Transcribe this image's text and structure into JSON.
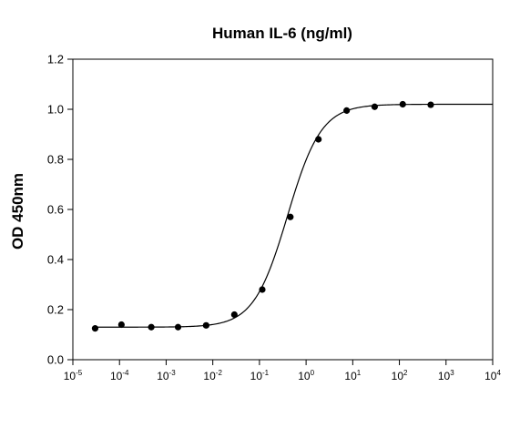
{
  "chart_data": {
    "type": "scatter",
    "title": "Human IL-6 (ng/ml)",
    "xlabel": "",
    "ylabel": "OD 450nm",
    "x_scale": "log",
    "xlim": [
      1e-05,
      10000
    ],
    "ylim": [
      0.0,
      1.2
    ],
    "x_ticks": [
      {
        "base": "10",
        "exp": "-5"
      },
      {
        "base": "10",
        "exp": "-4"
      },
      {
        "base": "10",
        "exp": "-3"
      },
      {
        "base": "10",
        "exp": "-2"
      },
      {
        "base": "10",
        "exp": "-1"
      },
      {
        "base": "10",
        "exp": "0"
      },
      {
        "base": "10",
        "exp": "1"
      },
      {
        "base": "10",
        "exp": "2"
      },
      {
        "base": "10",
        "exp": "3"
      },
      {
        "base": "10",
        "exp": "4"
      }
    ],
    "y_ticks": [
      "0.0",
      "0.2",
      "0.4",
      "0.6",
      "0.8",
      "1.0",
      "1.2"
    ],
    "grid": false,
    "legend": "none",
    "points": {
      "x": [
        3e-05,
        0.00011,
        0.00048,
        0.0018,
        0.0072,
        0.029,
        0.115,
        0.46,
        1.84,
        7.4,
        29.5,
        118,
        470
      ],
      "y": [
        0.125,
        0.14,
        0.13,
        0.13,
        0.137,
        0.18,
        0.28,
        0.57,
        0.88,
        0.995,
        1.01,
        1.02,
        1.018
      ]
    },
    "fit_curve": {
      "model": "4PL",
      "bottom": 0.13,
      "top": 1.02,
      "ec50": 0.4,
      "hill": 1.2
    },
    "colors": {
      "marker": "#000000",
      "line": "#000000"
    }
  }
}
